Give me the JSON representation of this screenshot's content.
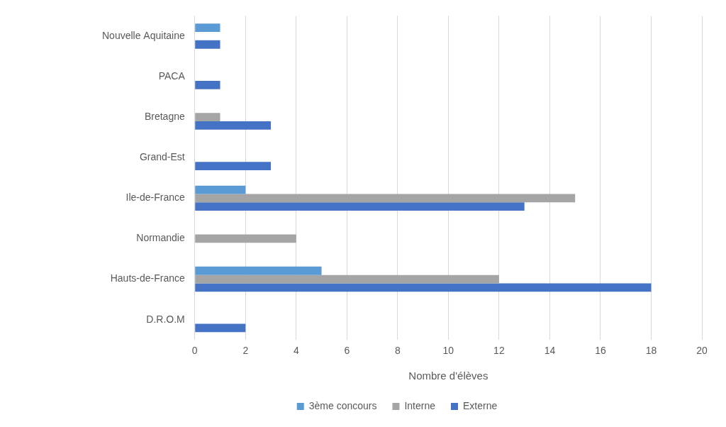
{
  "chart_data": {
    "type": "bar",
    "orientation": "horizontal",
    "categories": [
      "Nouvelle Aquitaine",
      "PACA",
      "Bretagne",
      "Grand-Est",
      "Ile-de-France",
      "Normandie",
      "Hauts-de-France",
      "D.R.O.M"
    ],
    "series": [
      {
        "name": "3ème concours",
        "color": "#5b9bd5",
        "values": [
          1,
          0,
          0,
          0,
          2,
          0,
          5,
          0
        ]
      },
      {
        "name": "Interne",
        "color": "#a5a5a5",
        "values": [
          0,
          0,
          1,
          0,
          15,
          4,
          12,
          0
        ]
      },
      {
        "name": "Externe",
        "color": "#4472c4",
        "values": [
          1,
          1,
          3,
          3,
          13,
          0,
          18,
          2
        ]
      }
    ],
    "x_label": "Nombre d'élèves",
    "xlim": [
      0,
      20
    ],
    "xticks": [
      0,
      2,
      4,
      6,
      8,
      10,
      12,
      14,
      16,
      18,
      20
    ],
    "grid": true,
    "legend": "bottom"
  }
}
